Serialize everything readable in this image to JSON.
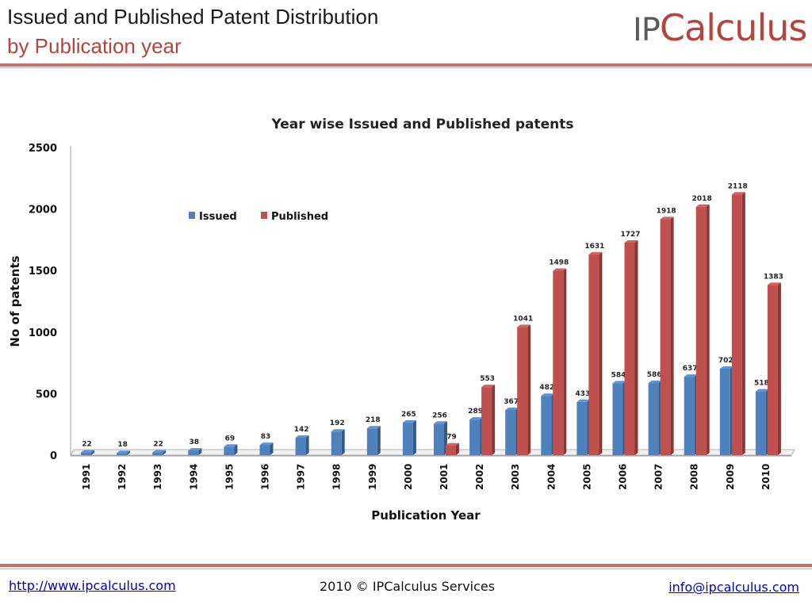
{
  "header": {
    "title_line1": "Issued and Published Patent Distribution",
    "title_line2": "by Publication year",
    "logo_ip": "IP",
    "logo_rest": "Calculus"
  },
  "footer": {
    "website": "http://www.ipcalculus.com",
    "copyright": "2010 © IPCalculus Services",
    "email": "info@ipcalculus.com"
  },
  "colors": {
    "issued": "#4f81bd",
    "published": "#c0504d",
    "accent": "#b5443e"
  },
  "chart_data": {
    "type": "bar",
    "title": "Year wise Issued and Published patents",
    "xlabel": "Publication Year",
    "ylabel": "No of patents",
    "ylim": [
      0,
      2500
    ],
    "yticks": [
      0,
      500,
      1000,
      1500,
      2000,
      2500
    ],
    "grid": false,
    "legend_position": "top-left",
    "categories": [
      "1991",
      "1992",
      "1993",
      "1994",
      "1995",
      "1996",
      "1997",
      "1998",
      "1999",
      "2000",
      "2001",
      "2002",
      "2003",
      "2004",
      "2005",
      "2006",
      "2007",
      "2008",
      "2009",
      "2010"
    ],
    "series": [
      {
        "name": "Issued",
        "values": [
          22,
          18,
          22,
          38,
          69,
          83,
          142,
          192,
          218,
          265,
          256,
          289,
          367,
          482,
          433,
          584,
          586,
          637,
          702,
          518
        ]
      },
      {
        "name": "Published",
        "values": [
          null,
          null,
          null,
          null,
          null,
          null,
          null,
          null,
          null,
          null,
          79,
          553,
          1041,
          1498,
          1631,
          1727,
          1918,
          2018,
          2118,
          1383
        ]
      }
    ]
  }
}
